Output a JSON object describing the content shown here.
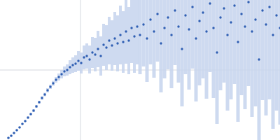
{
  "chart_data": {
    "type": "scatter",
    "marker": "circle",
    "color": "#2f5fb3",
    "error_color": "#c6d4ed",
    "grid": true,
    "tick_labels": false,
    "xlim": [
      0,
      4
    ],
    "ylim": [
      0,
      2
    ],
    "xticks": [
      1.15
    ],
    "yticks": [
      1
    ],
    "x": [
      0.12,
      0.16,
      0.2,
      0.24,
      0.28,
      0.32,
      0.36,
      0.4,
      0.44,
      0.48,
      0.52,
      0.56,
      0.6,
      0.64,
      0.68,
      0.72,
      0.76,
      0.8,
      0.84,
      0.88,
      0.92,
      0.96,
      1.0,
      1.04,
      1.08,
      1.12,
      1.16,
      1.2,
      1.24,
      1.28,
      1.32,
      1.36,
      1.4,
      1.44,
      1.48,
      1.52,
      1.56,
      1.6,
      1.64,
      1.68,
      1.72,
      1.76,
      1.8,
      1.84,
      1.88,
      1.92,
      1.96,
      2.0,
      2.05,
      2.1,
      2.15,
      2.2,
      2.25,
      2.3,
      2.35,
      2.4,
      2.45,
      2.5,
      2.55,
      2.6,
      2.65,
      2.7,
      2.75,
      2.8,
      2.85,
      2.9,
      2.95,
      3.0,
      3.05,
      3.1,
      3.15,
      3.2,
      3.25,
      3.3,
      3.35,
      3.4,
      3.45,
      3.5,
      3.55,
      3.6,
      3.65,
      3.7,
      3.75,
      3.8,
      3.85,
      3.9,
      3.95,
      4.0
    ],
    "values": [
      0.03,
      0.06,
      0.1,
      0.14,
      0.18,
      0.23,
      0.27,
      0.32,
      0.37,
      0.42,
      0.48,
      0.54,
      0.6,
      0.65,
      0.71,
      0.76,
      0.81,
      0.86,
      0.9,
      0.94,
      0.98,
      1.0,
      1.04,
      1.07,
      1.09,
      1.13,
      1.1,
      1.18,
      1.2,
      1.15,
      1.25,
      1.22,
      1.3,
      1.2,
      1.36,
      1.32,
      1.42,
      1.35,
      1.45,
      1.38,
      1.5,
      1.4,
      1.55,
      1.42,
      1.6,
      1.48,
      1.62,
      1.5,
      1.65,
      1.45,
      1.72,
      1.55,
      1.8,
      1.38,
      1.6,
      1.75,
      1.5,
      1.85,
      1.62,
      1.3,
      1.78,
      1.58,
      1.9,
      1.45,
      1.7,
      1.82,
      1.55,
      1.95,
      1.6,
      1.25,
      1.75,
      1.88,
      1.5,
      1.68,
      1.92,
      1.4,
      1.8,
      1.62,
      1.97,
      1.55,
      1.72,
      1.15,
      1.85,
      1.65,
      1.9,
      1.5,
      1.78,
      1.6
    ],
    "errors": [
      0.01,
      0.01,
      0.01,
      0.01,
      0.01,
      0.01,
      0.01,
      0.015,
      0.015,
      0.02,
      0.02,
      0.02,
      0.025,
      0.025,
      0.03,
      0.03,
      0.035,
      0.04,
      0.05,
      0.06,
      0.07,
      0.08,
      0.1,
      0.11,
      0.12,
      0.14,
      0.15,
      0.17,
      0.18,
      0.2,
      0.22,
      0.24,
      0.26,
      0.28,
      0.3,
      0.32,
      0.34,
      0.36,
      0.38,
      0.4,
      0.42,
      0.44,
      0.46,
      0.48,
      0.5,
      0.52,
      0.54,
      0.56,
      0.6,
      0.62,
      0.64,
      0.66,
      0.68,
      0.7,
      0.72,
      0.74,
      0.76,
      0.78,
      0.8,
      0.82,
      0.84,
      0.86,
      0.88,
      0.9,
      0.92,
      0.94,
      0.96,
      0.98,
      1.0,
      1.02,
      1.04,
      1.06,
      1.08,
      1.1,
      1.12,
      1.14,
      1.16,
      1.18,
      1.2,
      1.22,
      1.24,
      1.26,
      1.28,
      1.3,
      1.32,
      1.34,
      1.36,
      1.38
    ]
  }
}
